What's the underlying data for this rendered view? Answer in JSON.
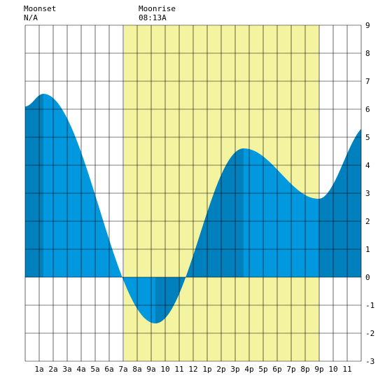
{
  "header": {
    "moonset_label": "Moonset",
    "moonset_value": "N/A",
    "moonrise_label": "Moonrise",
    "moonrise_value": "08:13A"
  },
  "chart_data": {
    "type": "area",
    "title": "",
    "xlabel": "",
    "ylabel": "",
    "x_range_hours": [
      -1,
      23
    ],
    "ylim": [
      -3,
      9
    ],
    "y_ticks": [
      "-3",
      "-2",
      "-1",
      "0",
      "1",
      "2",
      "3",
      "4",
      "5",
      "6",
      "7",
      "8",
      "9"
    ],
    "x_tick_labels": [
      "1a",
      "2a",
      "3a",
      "4a",
      "5a",
      "6a",
      "7a",
      "8a",
      "9a",
      "10",
      "11",
      "12",
      "1p",
      "2p",
      "3p",
      "4p",
      "5p",
      "6p",
      "7p",
      "8p",
      "9p",
      "10",
      "11"
    ],
    "daylight_hours": [
      6.05,
      20.0
    ],
    "tide_extremes": [
      {
        "hour": 0.3,
        "height": 6.55,
        "kind": "high"
      },
      {
        "hour": 8.3,
        "height": -1.65,
        "kind": "low"
      },
      {
        "hour": 14.6,
        "height": 4.6,
        "kind": "high"
      },
      {
        "hour": 19.95,
        "height": 2.8,
        "kind": "low"
      }
    ],
    "start_height": 6.1,
    "end_height": 5.3,
    "grid": true,
    "colors": {
      "daylight": "#f4f4a0",
      "tide_light": "#0099e0",
      "tide_dark": "#0080bc",
      "grid": "#000000"
    }
  }
}
